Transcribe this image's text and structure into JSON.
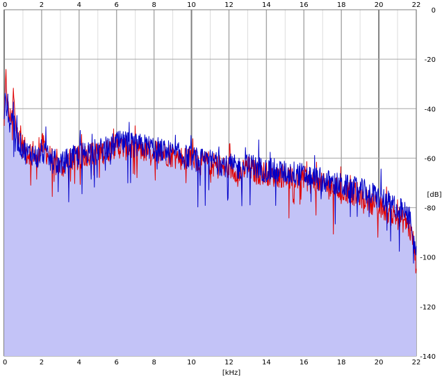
{
  "chart_data": {
    "type": "line",
    "title": "",
    "xlabel": "[kHz]",
    "ylabel": "[dB]",
    "xlim": [
      0,
      22
    ],
    "ylim": [
      -140,
      0
    ],
    "x_ticks": [
      "0",
      "2",
      "4",
      "6",
      "8",
      "10",
      "12",
      "14",
      "16",
      "18",
      "20",
      "22"
    ],
    "y_ticks": [
      "0",
      "-20",
      "-40",
      "-60",
      "-80",
      "-100",
      "-120",
      "-140"
    ],
    "grid": true,
    "legend": "none",
    "colors": {
      "background_fill": "#c3c3f7",
      "red_series": "#e00000",
      "blue_series": "#0000c8",
      "grid": "#a6a6a6",
      "grid_major": "#808080"
    },
    "series": [
      {
        "color": "#e00000",
        "x": [
          0.0,
          0.1,
          0.2,
          0.3,
          0.4,
          0.5,
          0.6,
          0.8,
          1.0,
          1.2,
          1.5,
          1.8,
          2.0,
          2.2,
          2.5,
          2.8,
          3.0,
          3.3,
          3.6,
          4.0,
          4.5,
          5.0,
          5.5,
          6.0,
          6.5,
          7.0,
          7.5,
          8.0,
          8.5,
          9.0,
          9.5,
          10.0,
          10.5,
          11.0,
          11.5,
          12.0,
          12.5,
          13.0,
          13.5,
          14.0,
          14.5,
          15.0,
          15.5,
          16.0,
          16.5,
          17.0,
          17.5,
          18.0,
          18.5,
          19.0,
          19.5,
          20.0,
          20.5,
          21.0,
          21.5,
          21.8,
          22.0
        ],
        "y": [
          -45,
          -27,
          -40,
          -44,
          -42,
          -34,
          -47,
          -52,
          -55,
          -58,
          -57,
          -60,
          -54,
          -57,
          -60,
          -63,
          -64,
          -62,
          -60,
          -60,
          -58,
          -58,
          -57,
          -55,
          -56,
          -56,
          -57,
          -57,
          -58,
          -59,
          -60,
          -60,
          -62,
          -62,
          -64,
          -64,
          -65,
          -64,
          -66,
          -66,
          -67,
          -67,
          -68,
          -68,
          -70,
          -71,
          -72,
          -73,
          -74,
          -75,
          -77,
          -80,
          -82,
          -84,
          -86,
          -92,
          -103
        ]
      },
      {
        "color": "#0000c8",
        "x": [
          0.0,
          0.1,
          0.2,
          0.3,
          0.4,
          0.5,
          0.6,
          0.8,
          1.0,
          1.2,
          1.5,
          1.8,
          2.0,
          2.2,
          2.5,
          2.8,
          3.0,
          3.3,
          3.6,
          4.0,
          4.5,
          5.0,
          5.5,
          6.0,
          6.5,
          7.0,
          7.5,
          8.0,
          8.5,
          9.0,
          9.5,
          10.0,
          10.5,
          11.0,
          11.5,
          12.0,
          12.5,
          13.0,
          13.5,
          14.0,
          14.5,
          15.0,
          15.5,
          16.0,
          16.5,
          17.0,
          17.5,
          18.0,
          18.5,
          19.0,
          19.5,
          20.0,
          20.5,
          21.0,
          21.5,
          21.8,
          22.0
        ],
        "y": [
          -40,
          -37,
          -42,
          -46,
          -44,
          -40,
          -50,
          -54,
          -56,
          -58,
          -58,
          -60,
          -57,
          -59,
          -61,
          -62,
          -63,
          -61,
          -60,
          -59,
          -57,
          -57,
          -56,
          -54,
          -54,
          -55,
          -55,
          -56,
          -57,
          -58,
          -59,
          -60,
          -61,
          -61,
          -62,
          -63,
          -64,
          -63,
          -64,
          -65,
          -65,
          -66,
          -66,
          -67,
          -68,
          -69,
          -70,
          -71,
          -72,
          -73,
          -74,
          -76,
          -78,
          -80,
          -83,
          -88,
          -100
        ]
      }
    ]
  }
}
